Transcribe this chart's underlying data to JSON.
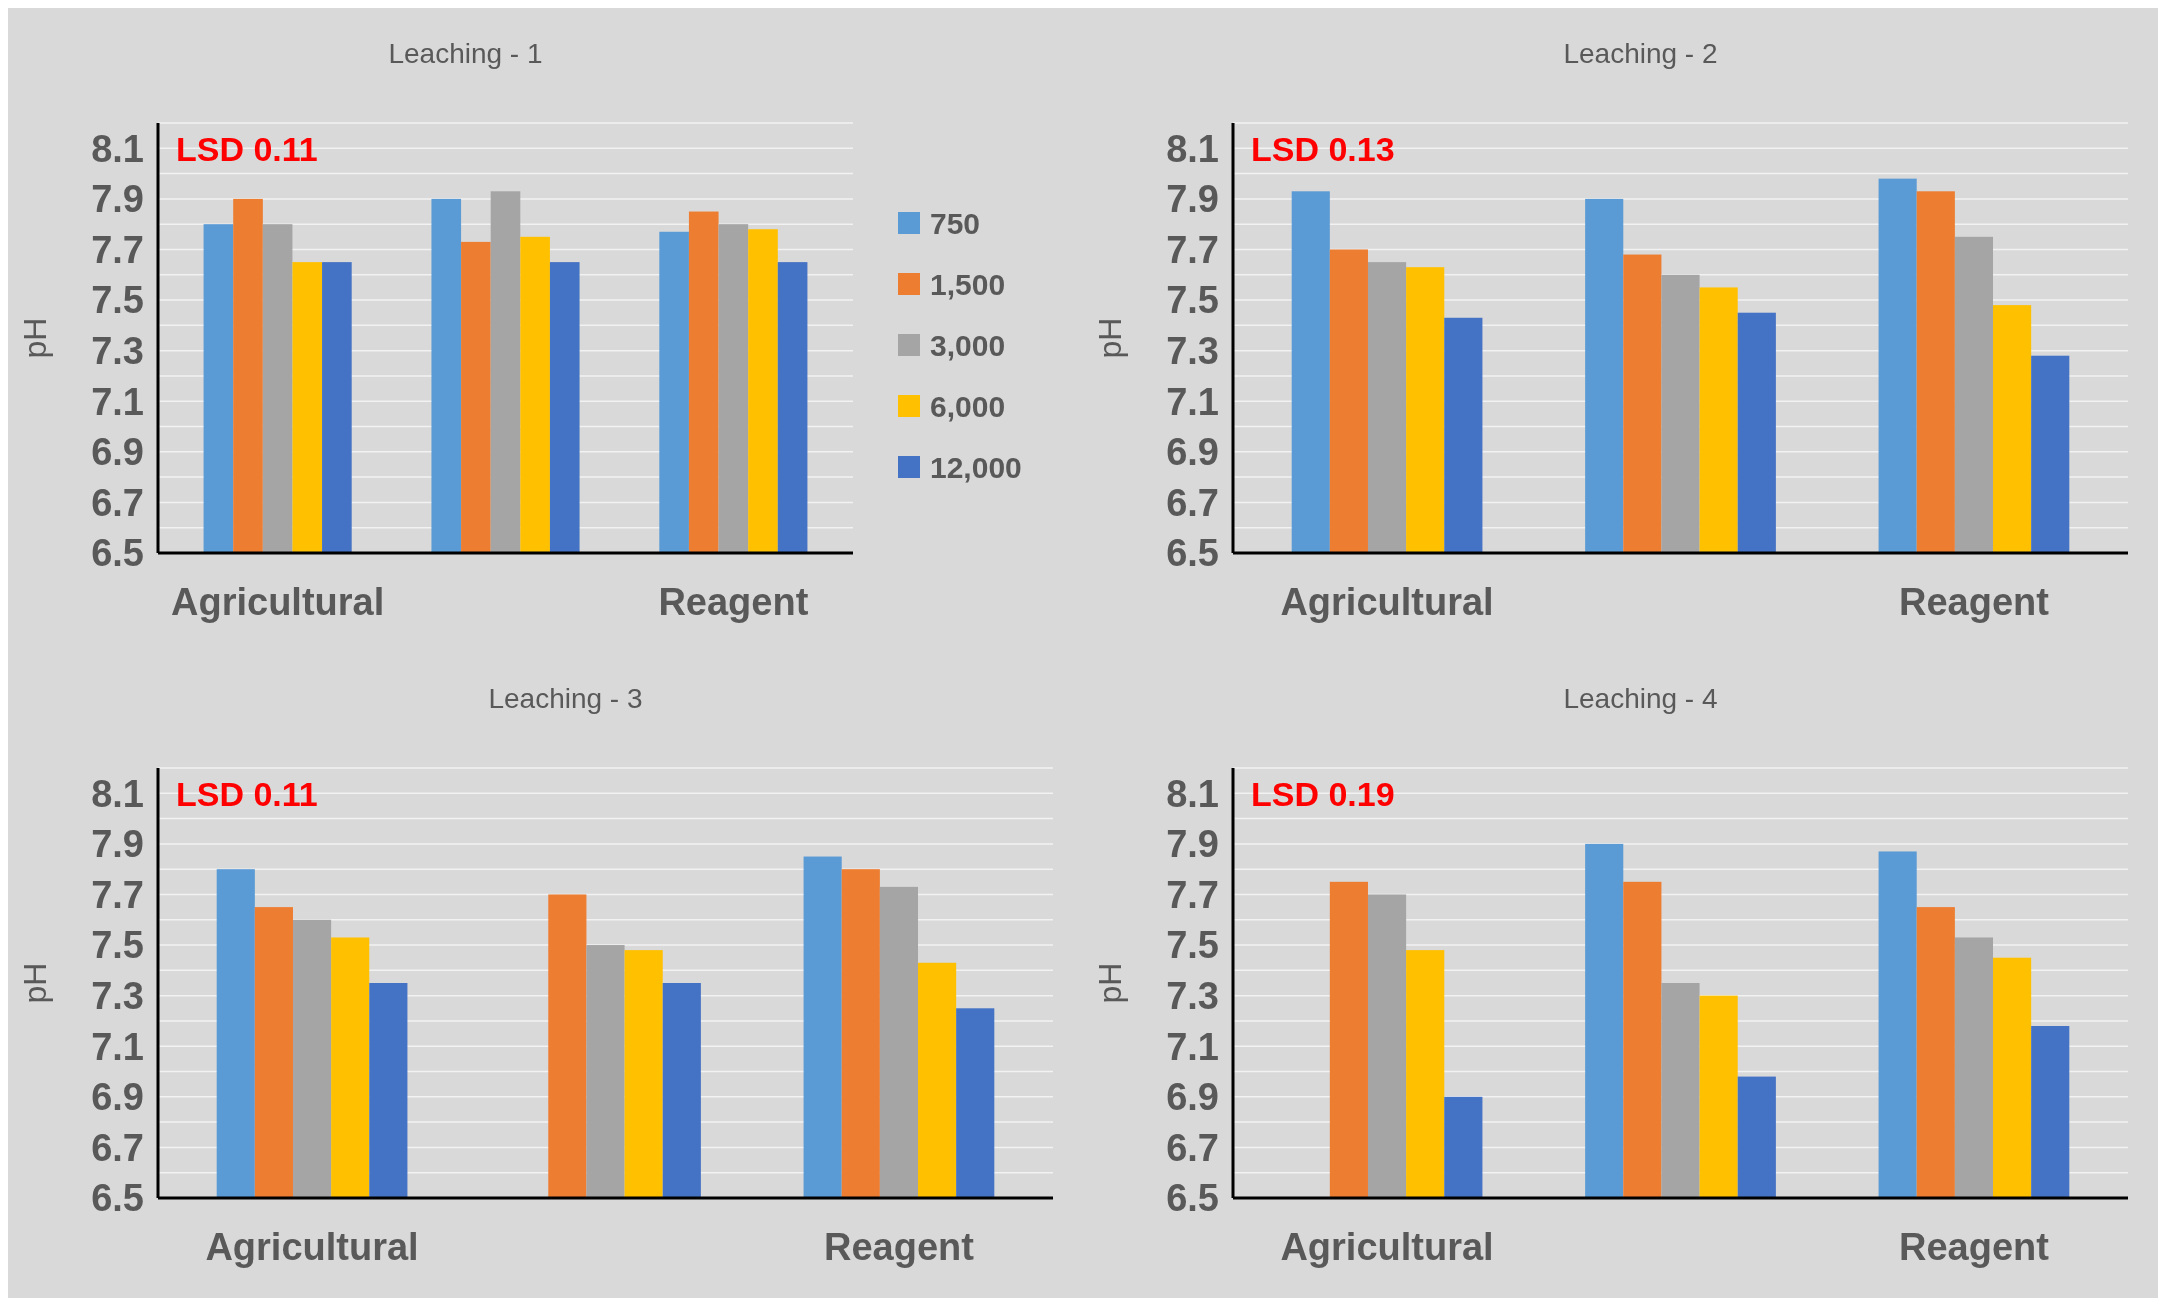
{
  "chart_data": [
    {
      "type": "bar",
      "title": "Leaching - 1",
      "ylabel": "pH",
      "categories": [
        "Agricultural",
        null,
        "Reagent"
      ],
      "ylim": [
        6.5,
        8.2
      ],
      "yticks": [
        6.5,
        {
          "value": 6.6,
          "label": null
        },
        6.7,
        {
          "value": 6.8,
          "label": null
        },
        6.9,
        {
          "value": 7.0,
          "label": null
        },
        7.1,
        {
          "value": 7.2,
          "label": null
        },
        7.3,
        {
          "value": 7.4,
          "label": null
        },
        7.5,
        {
          "value": 7.6,
          "label": null
        },
        7.7,
        {
          "value": 7.8,
          "label": null
        },
        7.9,
        {
          "value": 8.0,
          "label": null
        },
        8.1,
        {
          "value": 8.2,
          "label": null
        }
      ],
      "grid": "y",
      "legend": "right",
      "annotations": [
        "LSD  0.11"
      ],
      "series": [
        {
          "name": "750",
          "color": "#5b9bd5",
          "values": [
            7.8,
            7.9,
            7.77
          ]
        },
        {
          "name": "1,500",
          "color": "#ed7d31",
          "values": [
            7.9,
            7.73,
            7.85
          ]
        },
        {
          "name": "3,000",
          "color": "#a5a5a5",
          "values": [
            7.8,
            7.93,
            7.8
          ]
        },
        {
          "name": "6,000",
          "color": "#ffc000",
          "values": [
            7.65,
            7.75,
            7.78
          ]
        },
        {
          "name": "12,000",
          "color": "#4472c4",
          "values": [
            7.65,
            7.65,
            7.65
          ]
        }
      ]
    },
    {
      "type": "bar",
      "title": "Leaching - 2",
      "ylabel": "pH",
      "categories": [
        "Agricultural",
        null,
        "Reagent"
      ],
      "ylim": [
        6.5,
        8.2
      ],
      "yticks": [
        6.5,
        {
          "value": 6.6,
          "label": null
        },
        6.7,
        {
          "value": 6.8,
          "label": null
        },
        6.9,
        {
          "value": 7.0,
          "label": null
        },
        7.1,
        {
          "value": 7.2,
          "label": null
        },
        7.3,
        {
          "value": 7.4,
          "label": null
        },
        7.5,
        {
          "value": 7.6,
          "label": null
        },
        7.7,
        {
          "value": 7.8,
          "label": null
        },
        7.9,
        {
          "value": 8.0,
          "label": null
        },
        8.1,
        {
          "value": 8.2,
          "label": null
        }
      ],
      "grid": "y",
      "annotations": [
        "LSD  0.13"
      ],
      "series": [
        {
          "color": "#5b9bd5",
          "values": [
            7.93,
            7.9,
            7.98
          ]
        },
        {
          "color": "#ed7d31",
          "values": [
            7.7,
            7.68,
            7.93
          ]
        },
        {
          "color": "#a5a5a5",
          "values": [
            7.65,
            7.6,
            7.75
          ]
        },
        {
          "color": "#ffc000",
          "values": [
            7.63,
            7.55,
            7.48
          ]
        },
        {
          "color": "#4472c4",
          "values": [
            7.43,
            7.45,
            7.28
          ]
        }
      ]
    },
    {
      "type": "bar",
      "title": "Leaching - 3",
      "ylabel": "pH",
      "categories": [
        "Agricultural",
        null,
        "Reagent"
      ],
      "ylim": [
        6.5,
        8.2
      ],
      "yticks": [
        6.5,
        {
          "value": 6.6,
          "label": null
        },
        6.7,
        {
          "value": 6.8,
          "label": null
        },
        6.9,
        {
          "value": 7.0,
          "label": null
        },
        7.1,
        {
          "value": 7.2,
          "label": null
        },
        7.3,
        {
          "value": 7.4,
          "label": null
        },
        7.5,
        {
          "value": 7.6,
          "label": null
        },
        7.7,
        {
          "value": 7.8,
          "label": null
        },
        7.9,
        {
          "value": 8.0,
          "label": null
        },
        8.1,
        {
          "value": 8.2,
          "label": null
        }
      ],
      "grid": "y",
      "annotations": [
        "LSD 0.11"
      ],
      "series": [
        {
          "color": "#5b9bd5",
          "values": [
            7.8,
            null,
            7.85
          ]
        },
        {
          "color": "#ed7d31",
          "values": [
            7.65,
            7.7,
            7.8
          ]
        },
        {
          "color": "#a5a5a5",
          "values": [
            7.6,
            7.5,
            7.73
          ]
        },
        {
          "color": "#ffc000",
          "values": [
            7.53,
            7.48,
            7.43
          ]
        },
        {
          "color": "#4472c4",
          "values": [
            7.35,
            7.35,
            7.25
          ]
        }
      ]
    },
    {
      "type": "bar",
      "title": "Leaching - 4",
      "ylabel": "pH",
      "categories": [
        "Agricultural",
        null,
        "Reagent"
      ],
      "ylim": [
        6.5,
        8.2
      ],
      "yticks": [
        6.5,
        {
          "value": 6.6,
          "label": null
        },
        6.7,
        {
          "value": 6.8,
          "label": null
        },
        6.9,
        {
          "value": 7.0,
          "label": null
        },
        7.1,
        {
          "value": 7.2,
          "label": null
        },
        7.3,
        {
          "value": 7.4,
          "label": null
        },
        7.5,
        {
          "value": 7.6,
          "label": null
        },
        7.7,
        {
          "value": 7.8,
          "label": null
        },
        7.9,
        {
          "value": 8.0,
          "label": null
        },
        8.1,
        {
          "value": 8.2,
          "label": null
        }
      ],
      "grid": "y",
      "annotations": [
        "LSD  0.19"
      ],
      "series": [
        {
          "color": "#5b9bd5",
          "values": [
            null,
            7.9,
            7.87
          ]
        },
        {
          "color": "#ed7d31",
          "values": [
            7.75,
            7.75,
            7.65
          ]
        },
        {
          "color": "#a5a5a5",
          "values": [
            7.7,
            7.35,
            7.53
          ]
        },
        {
          "color": "#ffc000",
          "values": [
            7.48,
            7.3,
            7.45
          ]
        },
        {
          "color": "#4472c4",
          "values": [
            6.9,
            6.98,
            7.18
          ]
        }
      ]
    }
  ]
}
